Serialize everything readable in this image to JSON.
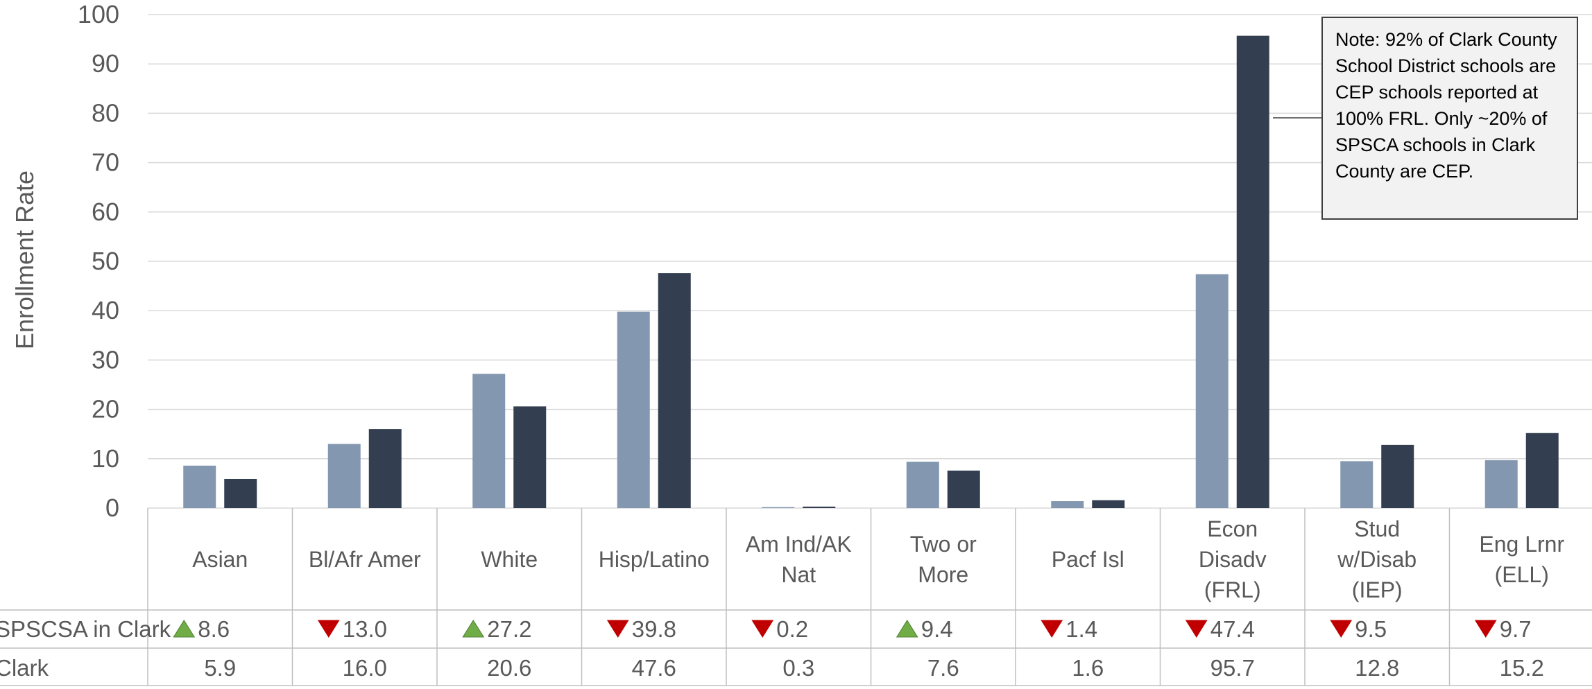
{
  "chart_data": {
    "type": "bar",
    "ylabel": "Enrollment Rate",
    "ylim": [
      0,
      100
    ],
    "yticks": [
      0,
      10,
      20,
      30,
      40,
      50,
      60,
      70,
      80,
      90,
      100
    ],
    "grid": true,
    "categories": [
      [
        "Asian"
      ],
      [
        "Bl/Afr Amer"
      ],
      [
        "White"
      ],
      [
        "Hisp/Latino"
      ],
      [
        "Am Ind/AK",
        "Nat"
      ],
      [
        "Two or",
        "More"
      ],
      [
        "Pacf Isl"
      ],
      [
        "Econ",
        "Disadv",
        "(FRL)"
      ],
      [
        "Stud",
        "w/Disab",
        "(IEP)"
      ],
      [
        "Eng Lrnr",
        "(ELL)"
      ]
    ],
    "series": [
      {
        "name": "SPSCSA in Clark",
        "color": "#8497b0",
        "values": [
          8.6,
          13.0,
          27.2,
          39.8,
          0.2,
          9.4,
          1.4,
          47.4,
          9.5,
          9.7
        ],
        "labels": [
          "8.6",
          "13.0",
          "27.2",
          "39.8",
          "0.2",
          "9.4",
          "1.4",
          "47.4",
          "9.5",
          "9.7"
        ],
        "indicators": [
          "up",
          "down",
          "up",
          "down",
          "down",
          "up",
          "down",
          "down",
          "down",
          "down"
        ]
      },
      {
        "name": "Clark",
        "color": "#333f50",
        "values": [
          5.9,
          16.0,
          20.6,
          47.6,
          0.3,
          7.6,
          1.6,
          95.7,
          12.8,
          15.2
        ],
        "labels": [
          "5.9",
          "16.0",
          "20.6",
          "47.6",
          "0.3",
          "7.6",
          "1.6",
          "95.7",
          "12.8",
          "15.2"
        ]
      }
    ],
    "indicator_colors": {
      "up": "#70ad47",
      "down": "#c00000"
    },
    "annotation": "Note: 92% of Clark County School District schools are CEP schools reported at 100% FRL. Only ~20% of SPSCA schools in Clark County are CEP."
  }
}
